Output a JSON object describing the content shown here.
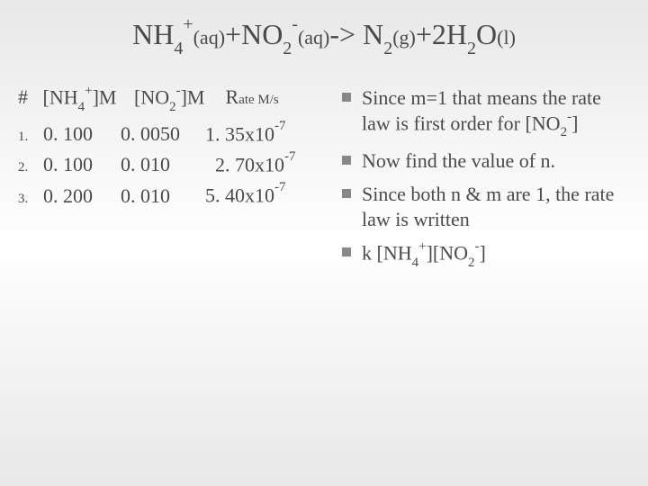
{
  "title": {
    "plain": "NH4+(aq)+NO2-(aq)-> N2(g)+2H2O(l)"
  },
  "table": {
    "header": {
      "hash": "#",
      "col1_prefix": "[NH",
      "col1_sub": "4",
      "col1_sup": "+",
      "col1_suffix": "]M",
      "col2_prefix": "[NO",
      "col2_sub": "2",
      "col2_sup": "-",
      "col2_suffix": "]M",
      "rate_label": "R",
      "rate_label2": "ate",
      "rate_unit": " M/s"
    },
    "rows": [
      {
        "n": "1.",
        "c1": "0. 100",
        "c2": "0. 0050",
        "c3_pre": "1. 35x10",
        "c3_sup": "-7"
      },
      {
        "n": "2.",
        "c1": "0. 100",
        "c2": "0. 010",
        "c3_pre": "2. 70x10",
        "c3_sup": "-7"
      },
      {
        "n": "3.",
        "c1": "0. 200",
        "c2": "0. 010",
        "c3_pre": "5. 40x10",
        "c3_sup": "-7"
      }
    ]
  },
  "bullets": {
    "b1_a": "Since m=1 that means the rate law is first order for [NO",
    "b1_sub": "2",
    "b1_sup": "-",
    "b1_b": "]",
    "b2": "Now find the value of n.",
    "b3": "Since both n & m are 1, the rate law is written",
    "b4_a": "k [NH",
    "b4_sub1": "4",
    "b4_sup1": "+",
    "b4_b": "][NO",
    "b4_sub2": "2",
    "b4_sup2": "-",
    "b4_c": "]"
  }
}
